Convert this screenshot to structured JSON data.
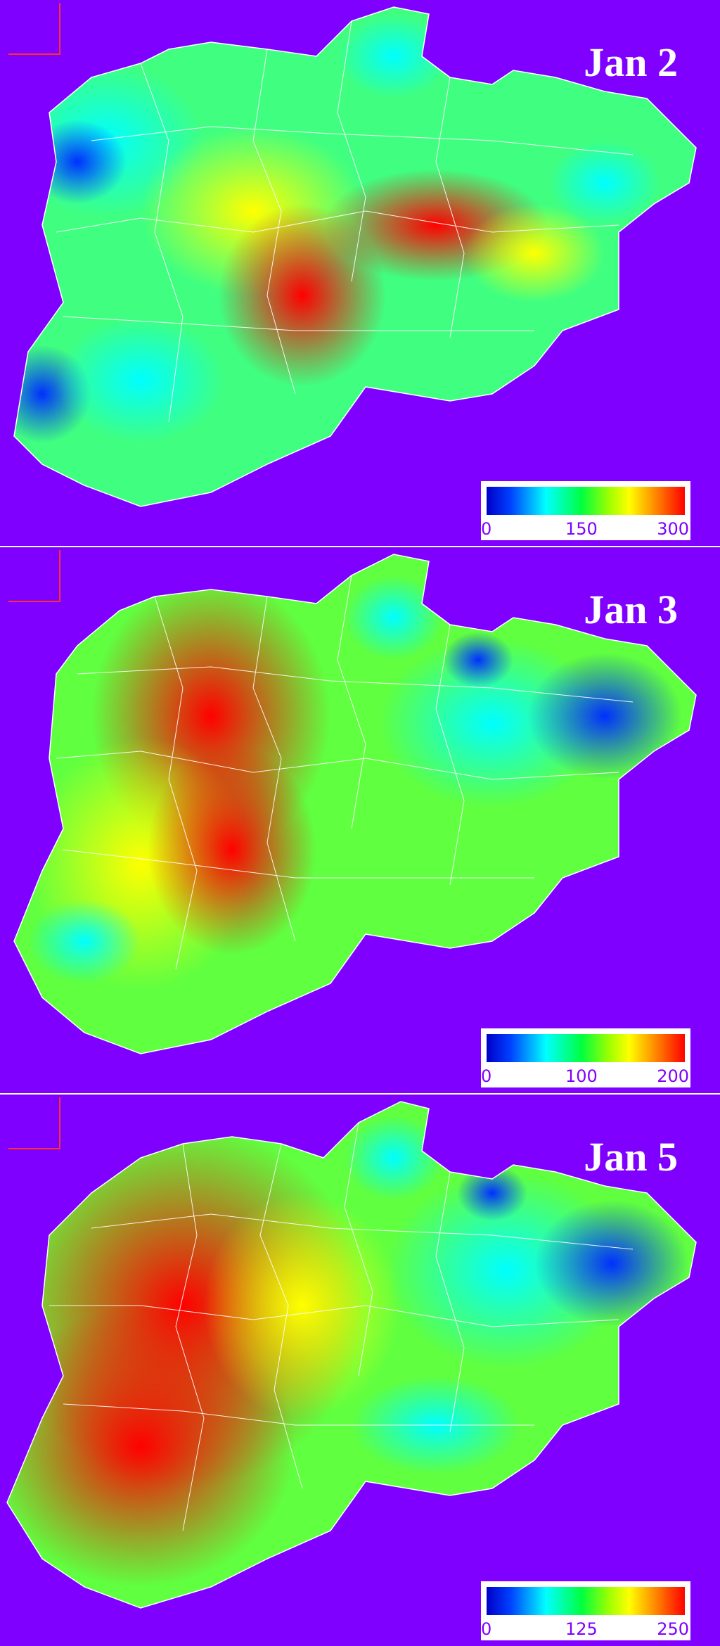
{
  "panels": [
    {
      "date": "Jan 2",
      "colorbar": {
        "min": "0",
        "mid": "150",
        "max": "300"
      }
    },
    {
      "date": "Jan 3",
      "colorbar": {
        "min": "0",
        "mid": "100",
        "max": "200"
      }
    },
    {
      "date": "Jan 5",
      "colorbar": {
        "min": "0",
        "mid": "125",
        "max": "250"
      }
    }
  ],
  "colors": {
    "background": "#7f00ff",
    "boundary": "#ffffff",
    "low": "#0000c8",
    "mid": "#00ff40",
    "high": "#ff0000"
  }
}
